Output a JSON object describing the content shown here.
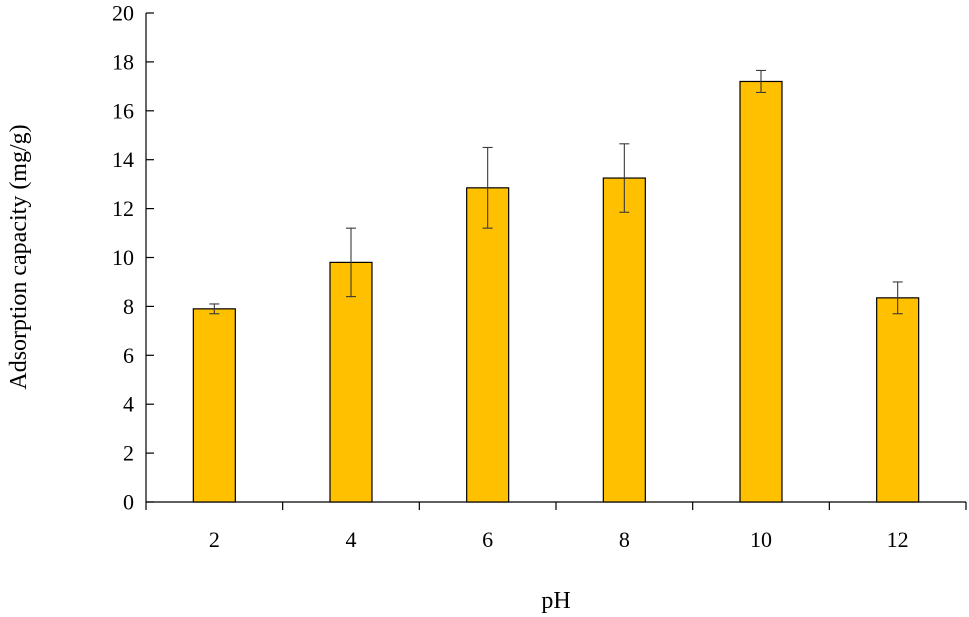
{
  "chart_data": {
    "type": "bar",
    "xlabel": "pH",
    "ylabel": "Adsorption capacity (mg/g)",
    "categories": [
      "2",
      "4",
      "6",
      "8",
      "10",
      "12"
    ],
    "series": [
      {
        "values": [
          7.9,
          9.8,
          12.85,
          13.25,
          17.2,
          8.35
        ],
        "errors": [
          0.2,
          1.4,
          1.65,
          1.4,
          0.45,
          0.65
        ]
      }
    ],
    "ylim": [
      0,
      20
    ],
    "yticks": [
      0,
      2,
      4,
      6,
      8,
      10,
      12,
      14,
      16,
      18,
      20
    ],
    "grid": false,
    "colors": {
      "bar": "#FFC000",
      "axis": "#000000"
    }
  }
}
